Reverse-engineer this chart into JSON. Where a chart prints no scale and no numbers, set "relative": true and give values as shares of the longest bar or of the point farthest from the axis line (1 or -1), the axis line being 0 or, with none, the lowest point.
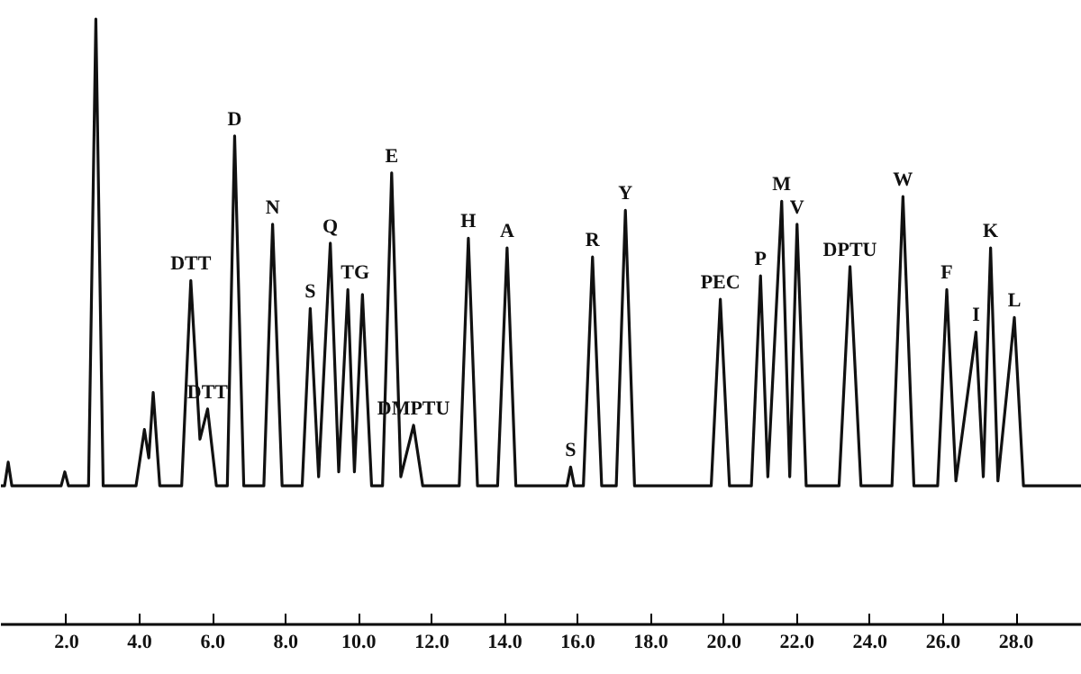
{
  "chart_data": {
    "type": "line",
    "relative": true,
    "color": "#111111",
    "grid": false,
    "marker": "none",
    "line_style": "solid",
    "x": [
      0.2,
      0.3,
      0.4,
      0.5,
      1.85,
      1.95,
      2.05,
      2.6,
      2.8,
      3.0,
      3.9,
      4.13,
      4.25,
      4.37,
      4.55,
      5.15,
      5.4,
      5.65,
      5.86,
      6.1,
      6.4,
      6.6,
      6.85,
      7.4,
      7.64,
      7.9,
      8.45,
      8.67,
      8.9,
      9.22,
      9.45,
      9.7,
      9.88,
      10.1,
      10.35,
      10.65,
      10.9,
      11.15,
      11.5,
      11.75,
      12.75,
      13.0,
      13.25,
      13.8,
      14.06,
      14.3,
      15.7,
      15.8,
      15.9,
      16.15,
      16.4,
      16.65,
      17.05,
      17.3,
      17.55,
      19.65,
      19.9,
      20.15,
      20.75,
      21.0,
      21.2,
      21.58,
      21.8,
      22.0,
      22.25,
      23.15,
      23.45,
      23.75,
      24.6,
      24.9,
      25.2,
      25.85,
      26.1,
      26.35,
      26.9,
      27.1,
      27.3,
      27.5,
      27.95,
      28.2,
      29.8
    ],
    "values": [
      0.229,
      0.229,
      0.268,
      0.229,
      0.229,
      0.252,
      0.229,
      0.229,
      1,
      0.229,
      0.229,
      0.322,
      0.275,
      0.383,
      0.229,
      0.229,
      0.568,
      0.306,
      0.356,
      0.229,
      0.229,
      0.807,
      0.229,
      0.229,
      0.661,
      0.229,
      0.229,
      0.522,
      0.244,
      0.63,
      0.252,
      0.553,
      0.252,
      0.545,
      0.229,
      0.229,
      0.746,
      0.244,
      0.329,
      0.229,
      0.229,
      0.638,
      0.229,
      0.229,
      0.622,
      0.229,
      0.229,
      0.26,
      0.229,
      0.229,
      0.607,
      0.229,
      0.229,
      0.684,
      0.229,
      0.229,
      0.537,
      0.229,
      0.229,
      0.576,
      0.244,
      0.699,
      0.244,
      0.661,
      0.229,
      0.229,
      0.591,
      0.229,
      0.229,
      0.707,
      0.229,
      0.229,
      0.553,
      0.237,
      0.483,
      0.244,
      0.622,
      0.237,
      0.507,
      0.229,
      0.229
    ],
    "xlim": [
      0.2,
      29.8
    ],
    "xticks": [
      {
        "value": 2,
        "label": "2.0"
      },
      {
        "value": 4,
        "label": "4.0"
      },
      {
        "value": 6,
        "label": "6.0"
      },
      {
        "value": 8,
        "label": "8.0"
      },
      {
        "value": 10,
        "label": "10.0"
      },
      {
        "value": 12,
        "label": "12.0"
      },
      {
        "value": 14,
        "label": "14.0"
      },
      {
        "value": 16,
        "label": "16.0"
      },
      {
        "value": 18,
        "label": "18.0"
      },
      {
        "value": 20,
        "label": "20.0"
      },
      {
        "value": 22,
        "label": "22.0"
      },
      {
        "value": 24,
        "label": "24.0"
      },
      {
        "value": 26,
        "label": "26.0"
      },
      {
        "value": 28,
        "label": "28.0"
      }
    ],
    "annotations": [
      {
        "text": "DTT",
        "x": 5.4,
        "y": 0.568
      },
      {
        "text": "DTT",
        "x": 5.86,
        "y": 0.356
      },
      {
        "text": "D",
        "x": 6.6,
        "y": 0.807
      },
      {
        "text": "N",
        "x": 7.64,
        "y": 0.661
      },
      {
        "text": "S",
        "x": 8.67,
        "y": 0.522
      },
      {
        "text": "Q",
        "x": 9.22,
        "y": 0.63
      },
      {
        "text": "TG",
        "x": 9.9,
        "y": 0.553
      },
      {
        "text": "E",
        "x": 10.9,
        "y": 0.746
      },
      {
        "text": "DMPTU",
        "x": 11.5,
        "y": 0.329
      },
      {
        "text": "H",
        "x": 13.0,
        "y": 0.638
      },
      {
        "text": "A",
        "x": 14.06,
        "y": 0.622
      },
      {
        "text": "S",
        "x": 15.8,
        "y": 0.26
      },
      {
        "text": "R",
        "x": 16.4,
        "y": 0.607
      },
      {
        "text": "Y",
        "x": 17.3,
        "y": 0.684
      },
      {
        "text": "PEC",
        "x": 19.9,
        "y": 0.537
      },
      {
        "text": "P",
        "x": 21.0,
        "y": 0.576
      },
      {
        "text": "M",
        "x": 21.58,
        "y": 0.699
      },
      {
        "text": "V",
        "x": 22.0,
        "y": 0.661
      },
      {
        "text": "DPTU",
        "x": 23.45,
        "y": 0.591
      },
      {
        "text": "W",
        "x": 24.9,
        "y": 0.707
      },
      {
        "text": "F",
        "x": 26.1,
        "y": 0.553
      },
      {
        "text": "I",
        "x": 26.9,
        "y": 0.483
      },
      {
        "text": "K",
        "x": 27.3,
        "y": 0.622
      },
      {
        "text": "L",
        "x": 27.95,
        "y": 0.507
      }
    ]
  }
}
